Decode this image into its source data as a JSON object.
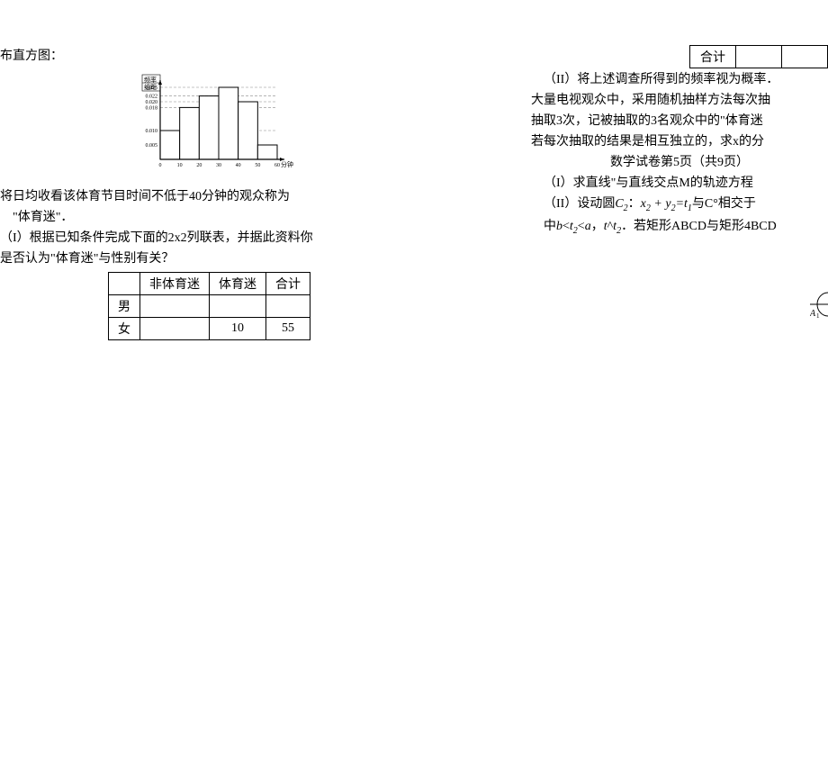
{
  "left": {
    "l1": "布直方图：",
    "l2": "将日均收看该体育节目时间不低于40分钟的观众称为",
    "l3": "\"体育迷\"．",
    "l4": "（I）根据已知条件完成下面的2x2列联表，并据此资料你",
    "l5": "是否认为\"体育迷\"与性别有关？"
  },
  "table1": {
    "h2": "非体育迷",
    "h3": "体育迷",
    "h4": "合计",
    "r1c1": "男",
    "r1c2": "",
    "r1c3": "",
    "r1c4": "",
    "r2c1": "女",
    "r2c2": "",
    "r2c3": "10",
    "r2c4": "55"
  },
  "right": {
    "tot_label": "合计",
    "r1": "（II）将上述调查所得到的频率视为概率．",
    "r2": "大量电视观众中，采用随机抽样方法每次抽",
    "r3": "抽取3次，记被抽取的3名观众中的\"体育迷",
    "r4": "若每次抽取的结果是相互独立的，求x的分",
    "r5": "数学试卷第5页（共9页）",
    "r6": "（I）求直线\"与直线交点M的轨迹方程",
    "r7a": "（II）设动圆",
    "r7b": "C",
    "r7c": "2",
    "r7d": "：",
    "r7e": "x",
    "r7f": "2",
    "r7g": " + ",
    "r7h": "y",
    "r7i": "2",
    "r7j": "=t",
    "r7k": "1",
    "r7l": "与C°相交于",
    "r8a": "中",
    "r8b": "b",
    "r8c": "<",
    "r8d": "t",
    "r8e": "2",
    "r8f": "<",
    "r8g": "a",
    "r8h": "，",
    "r8i": "t",
    "r8j": "^",
    "r8k": "t",
    "r8l": "2",
    "r8m": "．若矩形ABCD与矩形4BCD"
  },
  "chart": {
    "y_title_1": "频率",
    "y_title_2": "组距",
    "y_labels": [
      "0.025",
      "0.022",
      "0.020",
      "0.018",
      "0.010",
      "0.005"
    ],
    "x_labels": [
      "0",
      "10",
      "20",
      "30",
      "40",
      "50",
      "60"
    ],
    "x_axis_label": "分钟",
    "bars": [
      {
        "x": 0,
        "h": 0.01
      },
      {
        "x": 10,
        "h": 0.018
      },
      {
        "x": 20,
        "h": 0.022
      },
      {
        "x": 30,
        "h": 0.025
      },
      {
        "x": 40,
        "h": 0.02
      },
      {
        "x": 50,
        "h": 0.005
      }
    ],
    "colors": {
      "axis": "#000000",
      "bar_fill": "#ffffff",
      "bar_stroke": "#000000",
      "grid": "#888888"
    }
  },
  "ellipse": {
    "A": "A",
    "subA": "1"
  }
}
